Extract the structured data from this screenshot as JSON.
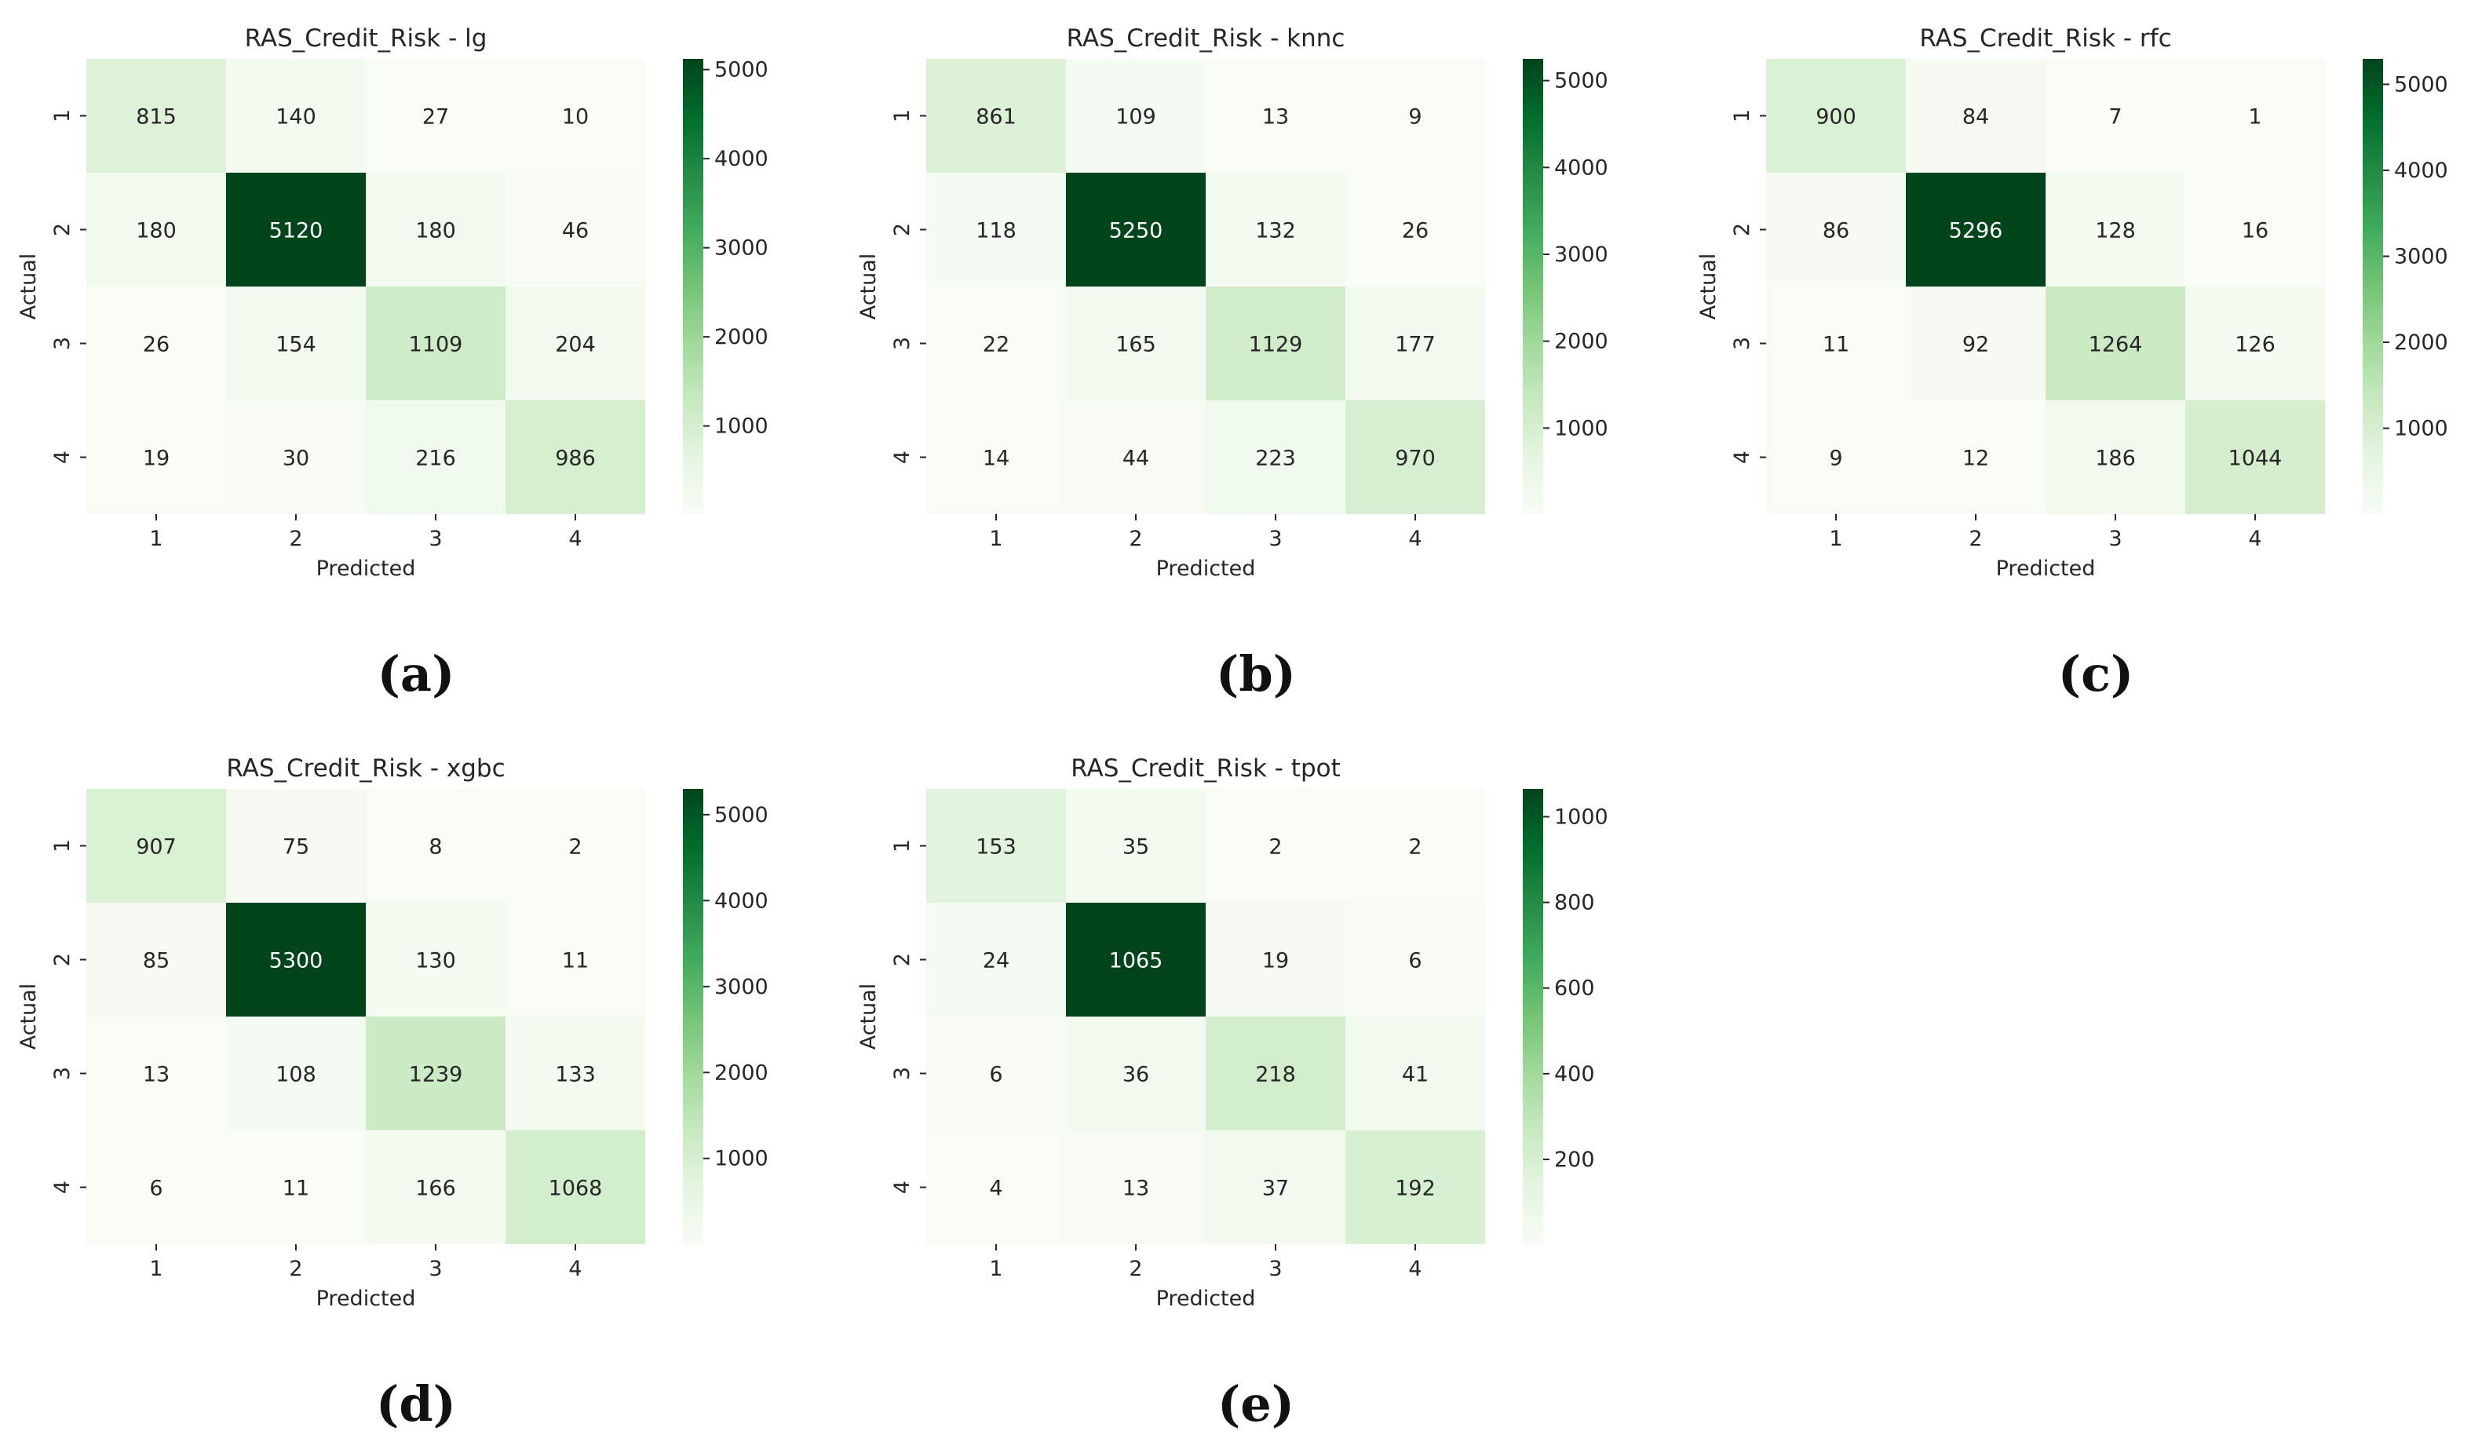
{
  "colors": {
    "cmap": [
      "#f7fcf5",
      "#e5f5e0",
      "#c7e9c0",
      "#a1d99b",
      "#74c476",
      "#41ab5d",
      "#238b45",
      "#006d2c",
      "#00441b"
    ],
    "text_dark": "#262626",
    "text_light": "#ffffff"
  },
  "chart_data": [
    {
      "type": "heatmap",
      "subfigure_label": "(a)",
      "title": "RAS_Credit_Risk - lg",
      "xlabel": "Predicted",
      "ylabel": "Actual",
      "x_categories": [
        "1",
        "2",
        "3",
        "4"
      ],
      "y_categories": [
        "1",
        "2",
        "3",
        "4"
      ],
      "values": [
        [
          815,
          140,
          27,
          10
        ],
        [
          180,
          5120,
          180,
          46
        ],
        [
          26,
          154,
          1109,
          204
        ],
        [
          19,
          30,
          216,
          986
        ]
      ],
      "colorbar": {
        "range": [
          10,
          5120
        ],
        "ticks": [
          1000,
          2000,
          3000,
          4000,
          5000
        ]
      }
    },
    {
      "type": "heatmap",
      "subfigure_label": "(b)",
      "title": "RAS_Credit_Risk - knnc",
      "xlabel": "Predicted",
      "ylabel": "Actual",
      "x_categories": [
        "1",
        "2",
        "3",
        "4"
      ],
      "y_categories": [
        "1",
        "2",
        "3",
        "4"
      ],
      "values": [
        [
          861,
          109,
          13,
          9
        ],
        [
          118,
          5250,
          132,
          26
        ],
        [
          22,
          165,
          1129,
          177
        ],
        [
          14,
          44,
          223,
          970
        ]
      ],
      "colorbar": {
        "range": [
          9,
          5250
        ],
        "ticks": [
          1000,
          2000,
          3000,
          4000,
          5000
        ]
      }
    },
    {
      "type": "heatmap",
      "subfigure_label": "(c)",
      "title": "RAS_Credit_Risk - rfc",
      "xlabel": "Predicted",
      "ylabel": "Actual",
      "x_categories": [
        "1",
        "2",
        "3",
        "4"
      ],
      "y_categories": [
        "1",
        "2",
        "3",
        "4"
      ],
      "values": [
        [
          900,
          84,
          7,
          1
        ],
        [
          86,
          5296,
          128,
          16
        ],
        [
          11,
          92,
          1264,
          126
        ],
        [
          9,
          12,
          186,
          1044
        ]
      ],
      "colorbar": {
        "range": [
          1,
          5296
        ],
        "ticks": [
          1000,
          2000,
          3000,
          4000,
          5000
        ]
      }
    },
    {
      "type": "heatmap",
      "subfigure_label": "(d)",
      "title": "RAS_Credit_Risk - xgbc",
      "xlabel": "Predicted",
      "ylabel": "Actual",
      "x_categories": [
        "1",
        "2",
        "3",
        "4"
      ],
      "y_categories": [
        "1",
        "2",
        "3",
        "4"
      ],
      "values": [
        [
          907,
          75,
          8,
          2
        ],
        [
          85,
          5300,
          130,
          11
        ],
        [
          13,
          108,
          1239,
          133
        ],
        [
          6,
          11,
          166,
          1068
        ]
      ],
      "colorbar": {
        "range": [
          2,
          5300
        ],
        "ticks": [
          1000,
          2000,
          3000,
          4000,
          5000
        ]
      }
    },
    {
      "type": "heatmap",
      "subfigure_label": "(e)",
      "title": "RAS_Credit_Risk - tpot",
      "xlabel": "Predicted",
      "ylabel": "Actual",
      "x_categories": [
        "1",
        "2",
        "3",
        "4"
      ],
      "y_categories": [
        "1",
        "2",
        "3",
        "4"
      ],
      "values": [
        [
          153,
          35,
          2,
          2
        ],
        [
          24,
          1065,
          19,
          6
        ],
        [
          6,
          36,
          218,
          41
        ],
        [
          4,
          13,
          37,
          192
        ]
      ],
      "colorbar": {
        "range": [
          2,
          1065
        ],
        "ticks": [
          200,
          400,
          600,
          800,
          1000
        ]
      }
    }
  ]
}
